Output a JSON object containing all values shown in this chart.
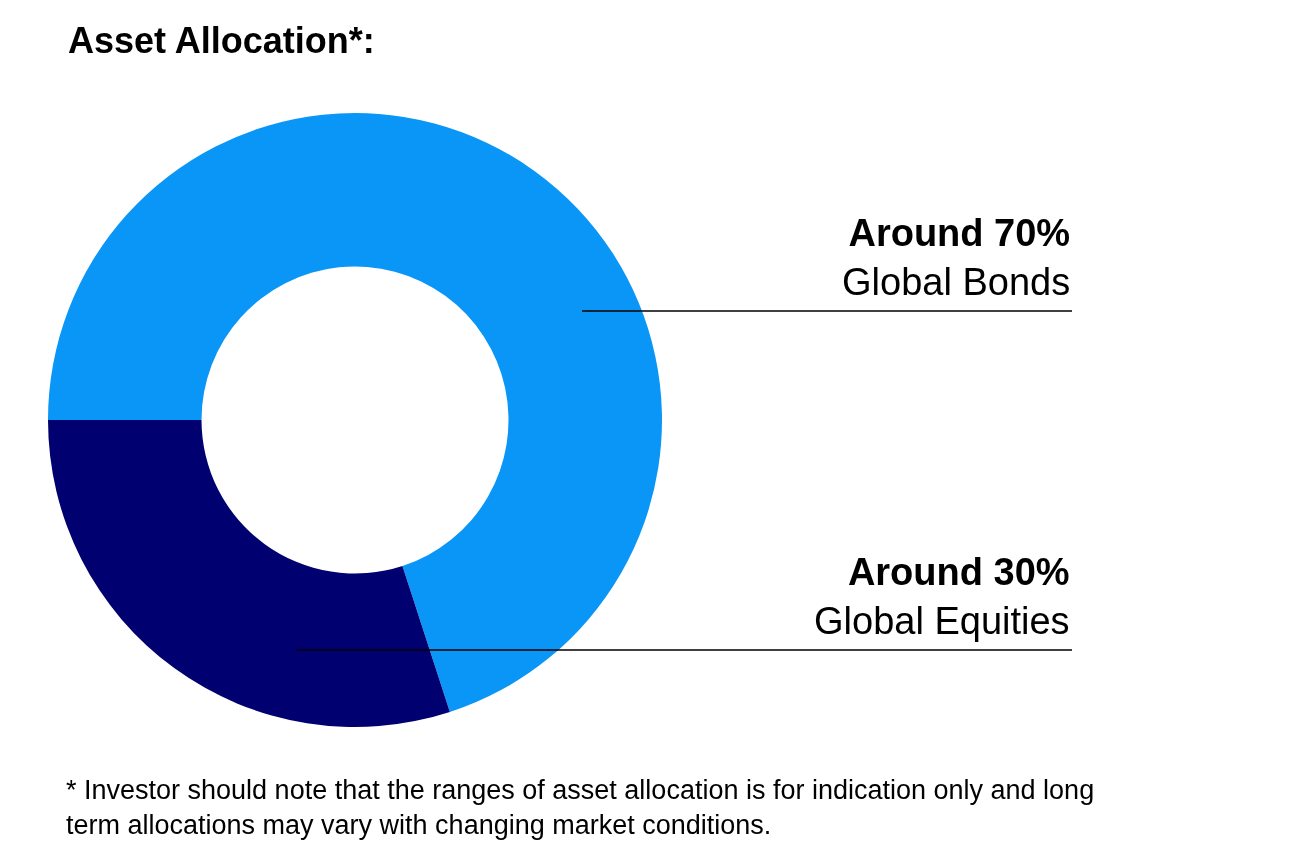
{
  "chart_data": {
    "type": "donut",
    "title": "Asset Allocation*:",
    "categories": [
      "Global Bonds",
      "Global Equities"
    ],
    "values": [
      70,
      30
    ],
    "value_labels": [
      "Around 70%",
      "Around 30%"
    ],
    "colors": [
      "#0a96f7",
      "#000070"
    ],
    "legend": false,
    "annotations": [
      "* Investor should note that the ranges of asset allocation is for indication only and long term allocations may vary with changing market conditions."
    ]
  }
}
